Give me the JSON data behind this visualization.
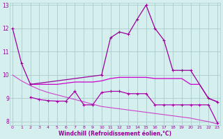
{
  "series": [
    {
      "x": [
        0,
        1,
        2,
        10,
        11,
        12,
        13,
        14,
        15,
        16,
        17,
        18,
        19,
        20,
        22,
        23
      ],
      "y": [
        12.0,
        10.5,
        9.6,
        10.0,
        11.6,
        11.85,
        11.75,
        12.4,
        13.0,
        12.0,
        11.5,
        10.2,
        10.2,
        10.2,
        9.0,
        8.85
      ],
      "color": "#990099",
      "lw": 0.9,
      "ms": 2.5
    },
    {
      "x": [
        2,
        3,
        4,
        5,
        6,
        7,
        8,
        9,
        10,
        11,
        12,
        13,
        14,
        15,
        16,
        17,
        18,
        19,
        20,
        21,
        22,
        23
      ],
      "y": [
        9.6,
        9.6,
        9.6,
        9.6,
        9.65,
        9.7,
        9.7,
        9.7,
        9.75,
        9.85,
        9.9,
        9.9,
        9.9,
        9.9,
        9.85,
        9.85,
        9.85,
        9.85,
        9.6,
        9.6,
        9.0,
        8.85
      ],
      "color": "#cc00cc",
      "lw": 0.9,
      "ms": 0
    },
    {
      "x": [
        2,
        3,
        4,
        5,
        6,
        7,
        8,
        9,
        10,
        11,
        12,
        13,
        14,
        15,
        16,
        17,
        18,
        19,
        20,
        21,
        22,
        23
      ],
      "y": [
        9.05,
        8.95,
        8.9,
        8.88,
        8.88,
        9.3,
        8.72,
        8.72,
        9.25,
        9.3,
        9.3,
        9.2,
        9.2,
        9.2,
        8.72,
        8.72,
        8.72,
        8.72,
        8.72,
        8.72,
        8.72,
        7.95
      ],
      "color": "#aa00aa",
      "lw": 0.9,
      "ms": 2.5
    },
    {
      "x": [
        0,
        1,
        2,
        3,
        4,
        5,
        6,
        7,
        8,
        9,
        10,
        11,
        12,
        13,
        14,
        15,
        16,
        17,
        18,
        19,
        20,
        21,
        22,
        23
      ],
      "y": [
        10.0,
        9.75,
        9.55,
        9.38,
        9.25,
        9.15,
        9.05,
        8.95,
        8.85,
        8.75,
        8.65,
        8.6,
        8.55,
        8.5,
        8.45,
        8.4,
        8.35,
        8.3,
        8.25,
        8.2,
        8.15,
        8.07,
        8.0,
        7.9
      ],
      "color": "#cc44cc",
      "lw": 0.8,
      "ms": 0
    }
  ],
  "xlim": [
    -0.3,
    23.3
  ],
  "ylim": [
    7.85,
    13.1
  ],
  "yticks": [
    8,
    9,
    10,
    11,
    12,
    13
  ],
  "xticks": [
    0,
    1,
    2,
    3,
    4,
    5,
    6,
    7,
    8,
    9,
    10,
    11,
    12,
    13,
    14,
    15,
    16,
    17,
    18,
    19,
    20,
    21,
    22,
    23
  ],
  "xlabel": "Windchill (Refroidissement éolien,°C)",
  "bg_color": "#d5eeee",
  "grid_color": "#aacccc",
  "tick_color": "#990099",
  "label_color": "#990099"
}
